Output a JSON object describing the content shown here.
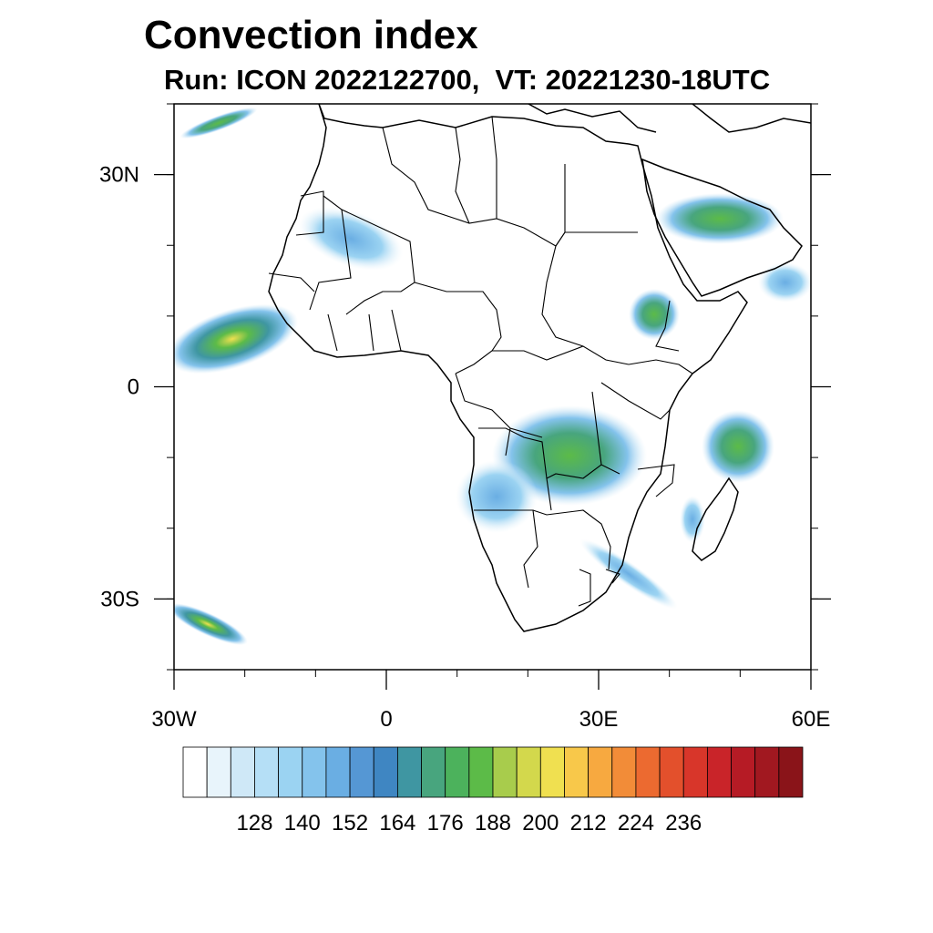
{
  "title": "Convection index",
  "subtitle": "Run: ICON 2022122700,  VT: 20221230-18UTC",
  "map": {
    "lon_range": [
      -30,
      60
    ],
    "lat_range": [
      -40,
      40
    ],
    "lat_ticks": [
      {
        "value": 30,
        "label": "30N"
      },
      {
        "value": 0,
        "label": "0"
      },
      {
        "value": -30,
        "label": "30S"
      }
    ],
    "lon_ticks": [
      {
        "value": -30,
        "label": "30W"
      },
      {
        "value": 0,
        "label": "0"
      },
      {
        "value": 30,
        "label": "30E"
      },
      {
        "value": 60,
        "label": "60E"
      }
    ]
  },
  "colorbar": {
    "labels": [
      "128",
      "140",
      "152",
      "164",
      "176",
      "188",
      "200",
      "212",
      "224",
      "236"
    ],
    "colors": [
      "#ffffff",
      "#e8f4fb",
      "#cfe8f7",
      "#b5dff6",
      "#9bd3f2",
      "#84c3ec",
      "#6aaee3",
      "#5597d4",
      "#3f86c2",
      "#3f96a2",
      "#48a57e",
      "#4cb25c",
      "#5cbb48",
      "#a8cc4c",
      "#d3d84c",
      "#f0e050",
      "#f8c84a",
      "#f7a940",
      "#f28c38",
      "#ec6a30",
      "#e3502c",
      "#d8362a",
      "#c92429",
      "#b61b25",
      "#a11820",
      "#8a1419"
    ]
  }
}
